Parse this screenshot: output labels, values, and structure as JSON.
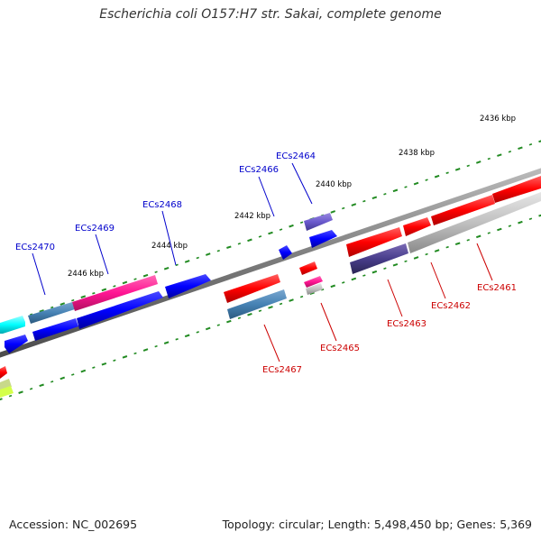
{
  "title": "Escherichia coli O157:H7 str. Sakai, complete genome",
  "footer": {
    "accession": "Accession: NC_002695",
    "summary": "Topology: circular; Length: 5,498,450 bp; Genes: 5,369"
  },
  "colors": {
    "backbone": "#808080",
    "tick": "#228b22",
    "forward_label": "#0000cc",
    "reverse_label": "#cc0000"
  },
  "scale_labels": [
    "2436 kbp",
    "2438 kbp",
    "2440 kbp",
    "2442 kbp",
    "2444 kbp",
    "2446 kbp"
  ],
  "forward_gene_labels": [
    "ECs2464",
    "ECs2466",
    "ECs2468",
    "ECs2469",
    "ECs2470"
  ],
  "reverse_gene_labels": [
    "ECs2461",
    "ECs2462",
    "ECs2463",
    "ECs2465",
    "ECs2467"
  ]
}
